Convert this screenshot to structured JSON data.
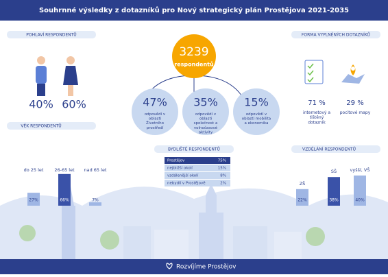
{
  "title": "Souhrnné výsledky z dotazníků pro Nový strategický plán Prostějova 2021-2035",
  "gender": {
    "heading": "POHLAVÍ RESPONDENTŮ",
    "values": [
      "40%",
      "60%"
    ]
  },
  "total": {
    "number": "3239",
    "label": "respondentů"
  },
  "topics": [
    {
      "value": "47%",
      "text": "odpovědí v oblasti Životního prostředí"
    },
    {
      "value": "35%",
      "text": "odpovědí v oblasti společnost a volnočasové aktivity"
    },
    {
      "value": "15%",
      "text": "odpovědí v oblasti mobilita a ekonomika"
    }
  ],
  "form": {
    "heading": "FORMA VYPLNĚNÝCH DOTAZNÍKŮ",
    "items": [
      {
        "value": "71 %",
        "text": "internetový a tištěný dotazník"
      },
      {
        "value": "29 %",
        "text": "pocitové mapy"
      }
    ]
  },
  "age": {
    "heading": "VĚK RESPONDENTŮ",
    "categories": [
      "do 25 let",
      "26-65 let",
      "nad 65 let"
    ],
    "values": [
      27,
      66,
      7
    ],
    "value_labels": [
      "27%",
      "66%",
      "7%"
    ]
  },
  "residence": {
    "heading": "BYDLIŠTĚ RESPONDENTŮ",
    "rows": [
      [
        "Prostějov",
        "75%"
      ],
      [
        "nejbližší okolí",
        "15%"
      ],
      [
        "vzdálenější okolí",
        "8%"
      ],
      [
        "nebydlí v Prostějově",
        "2%"
      ]
    ]
  },
  "education": {
    "heading": "VZDĚLÁNÍ RESPONDENTŮ",
    "categories": [
      "ZŠ",
      "SŠ",
      "vyšší, VŠ"
    ],
    "values": [
      22,
      38,
      40
    ],
    "value_labels": [
      "22%",
      "38%",
      "40%"
    ]
  },
  "footer": "Rozvíjíme Prostějov"
}
